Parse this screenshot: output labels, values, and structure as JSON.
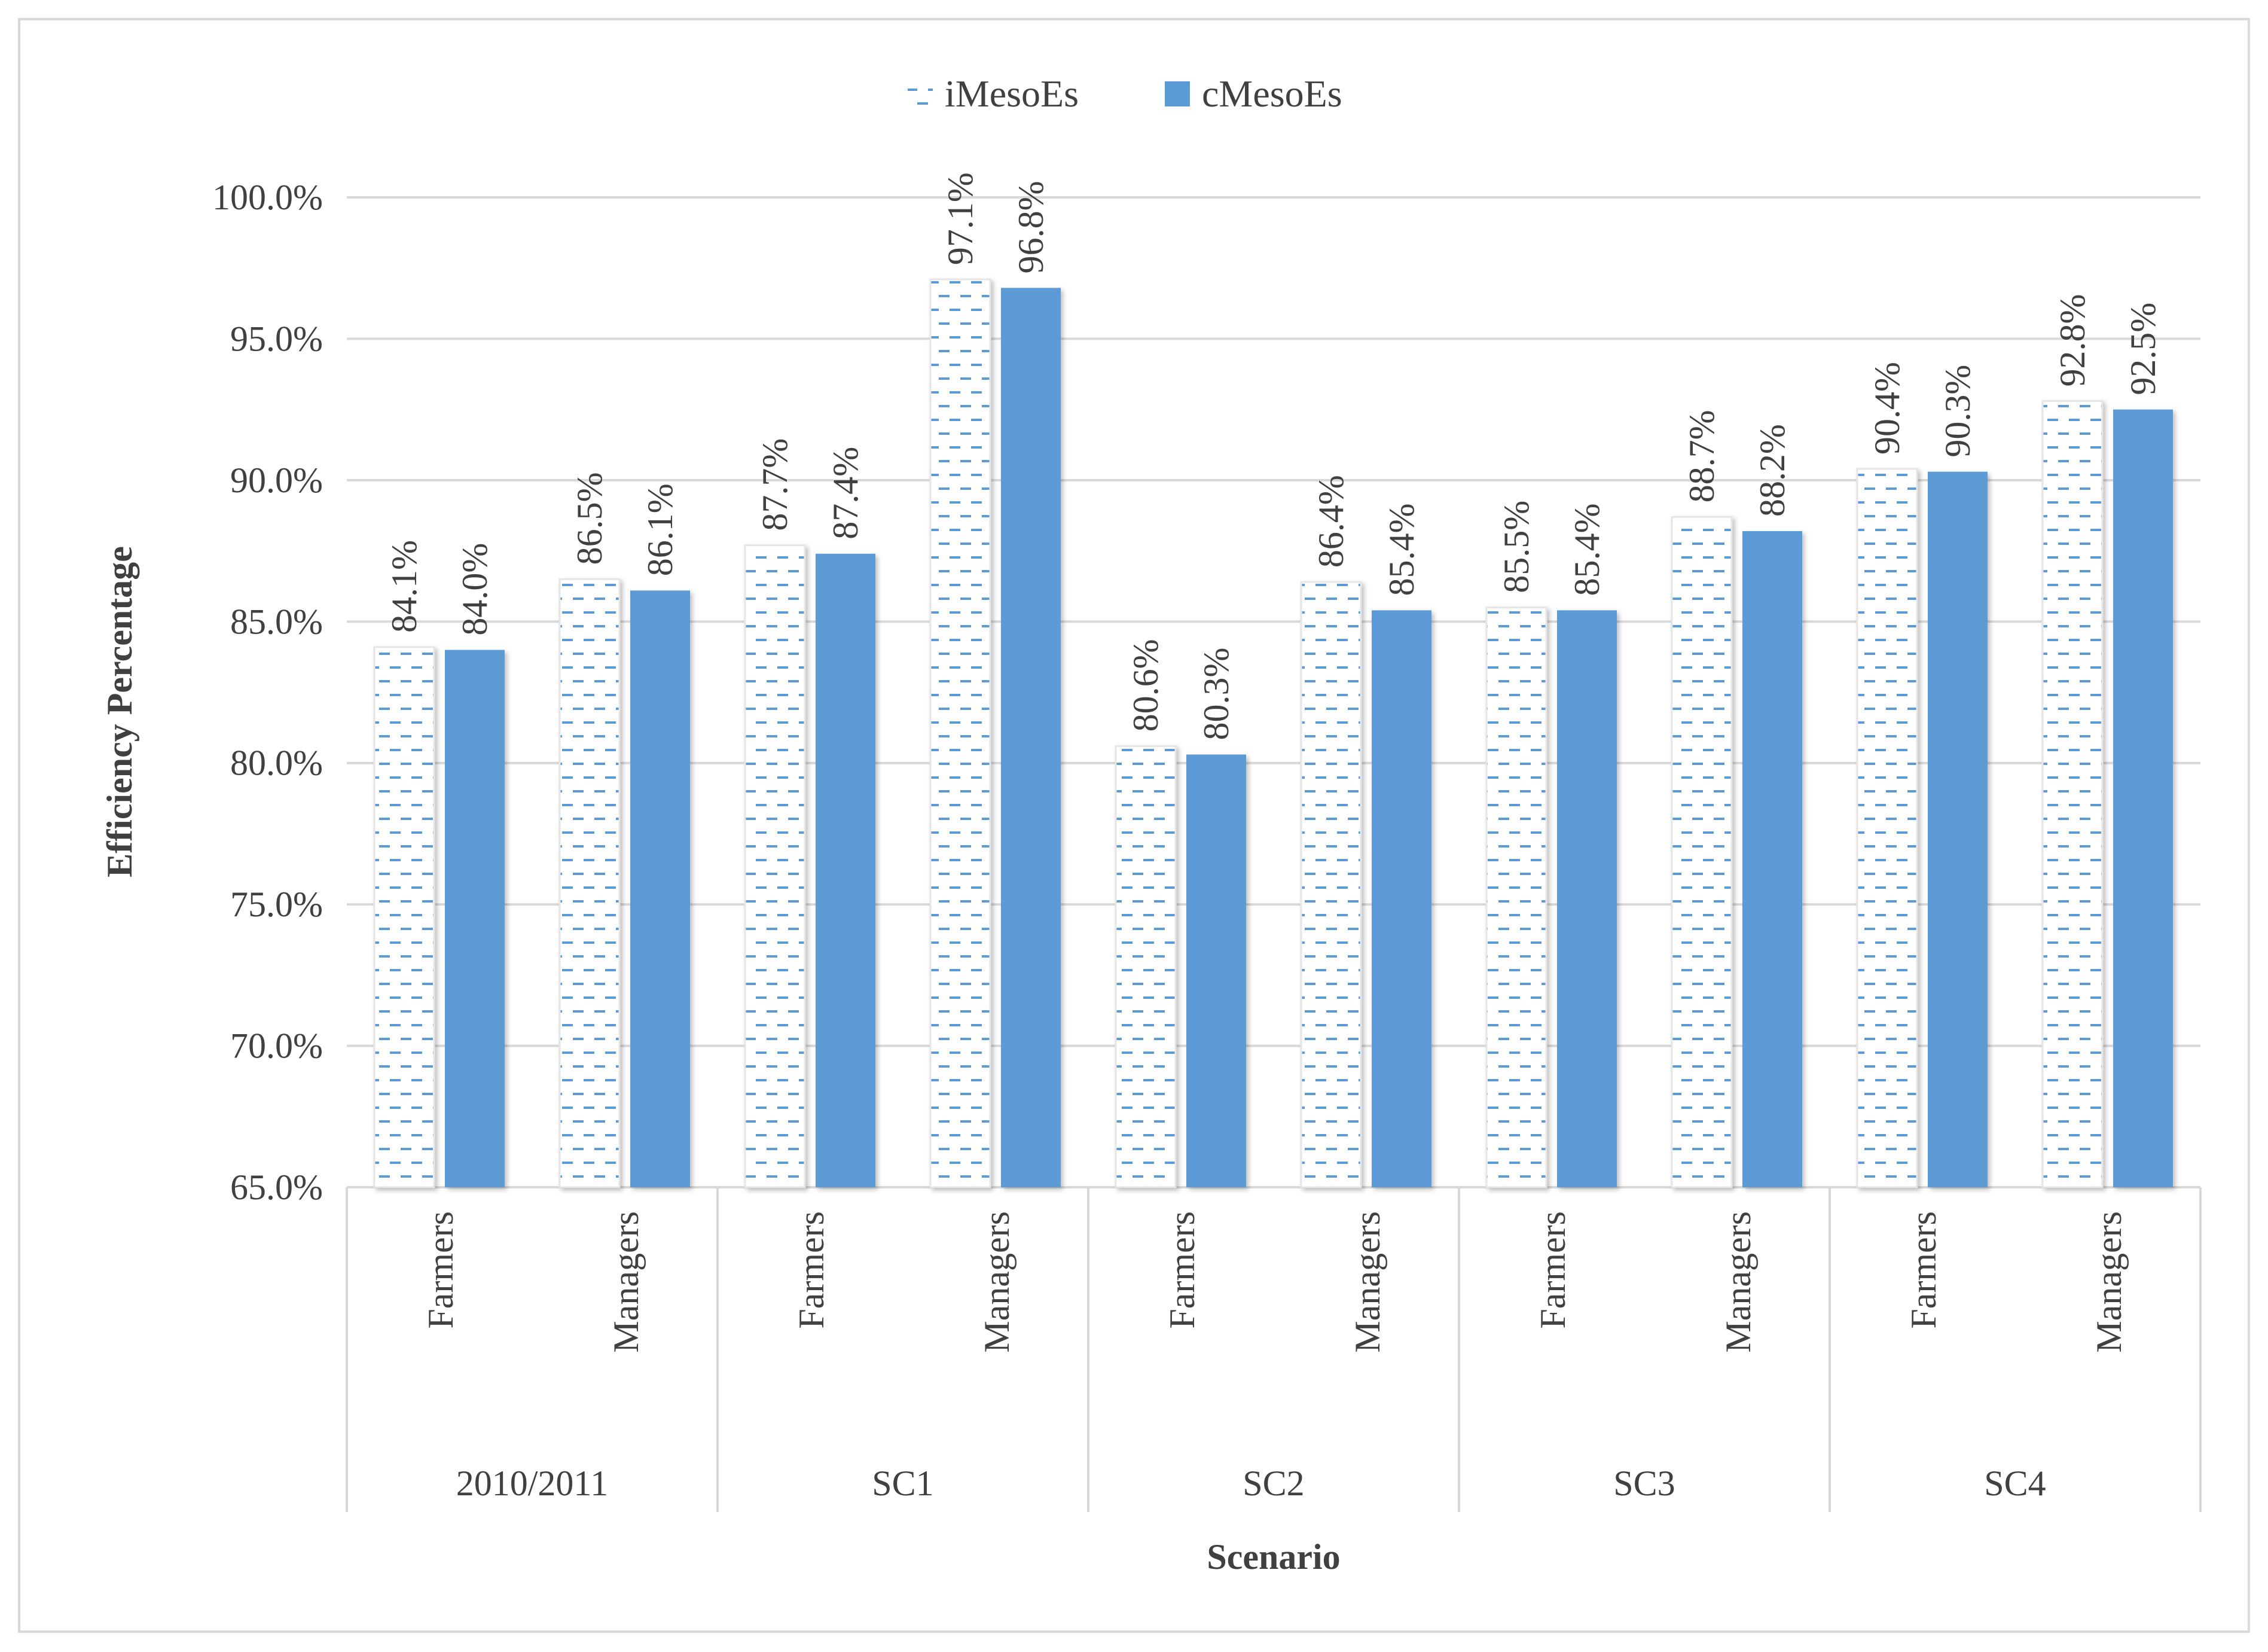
{
  "chart_data": {
    "type": "bar",
    "xlabel": "Scenario",
    "ylabel": "Efficiency Percentage",
    "ylim": [
      65.0,
      100.0
    ],
    "yticks": [
      "65.0%",
      "70.0%",
      "75.0%",
      "80.0%",
      "85.0%",
      "90.0%",
      "95.0%",
      "100.0%"
    ],
    "groups": [
      {
        "name": "2010/2011",
        "categories": [
          "Farmers",
          "Managers"
        ]
      },
      {
        "name": "SC1",
        "categories": [
          "Farmers",
          "Managers"
        ]
      },
      {
        "name": "SC2",
        "categories": [
          "Farmers",
          "Managers"
        ]
      },
      {
        "name": "SC3",
        "categories": [
          "Farmers",
          "Managers"
        ]
      },
      {
        "name": "SC4",
        "categories": [
          "Farmers",
          "Managers"
        ]
      }
    ],
    "series": [
      {
        "name": "iMesoEs",
        "color": "#5b9bd5",
        "pattern": "dashed",
        "values": [
          84.1,
          86.5,
          87.7,
          97.1,
          80.6,
          86.4,
          85.5,
          88.7,
          90.4,
          92.8
        ],
        "labels": [
          "84.1%",
          "86.5%",
          "87.7%",
          "97.1%",
          "80.6%",
          "86.4%",
          "85.5%",
          "88.7%",
          "90.4%",
          "92.8%"
        ]
      },
      {
        "name": "cMesoEs",
        "color": "#5b9bd5",
        "pattern": "solid",
        "values": [
          84.0,
          86.1,
          87.4,
          96.8,
          80.3,
          85.4,
          85.4,
          88.2,
          90.3,
          92.5
        ],
        "labels": [
          "84.0%",
          "86.1%",
          "87.4%",
          "96.8%",
          "80.3%",
          "85.4%",
          "85.4%",
          "88.2%",
          "90.3%",
          "92.5%"
        ]
      }
    ],
    "legend_position": "top-center",
    "grid": true
  }
}
